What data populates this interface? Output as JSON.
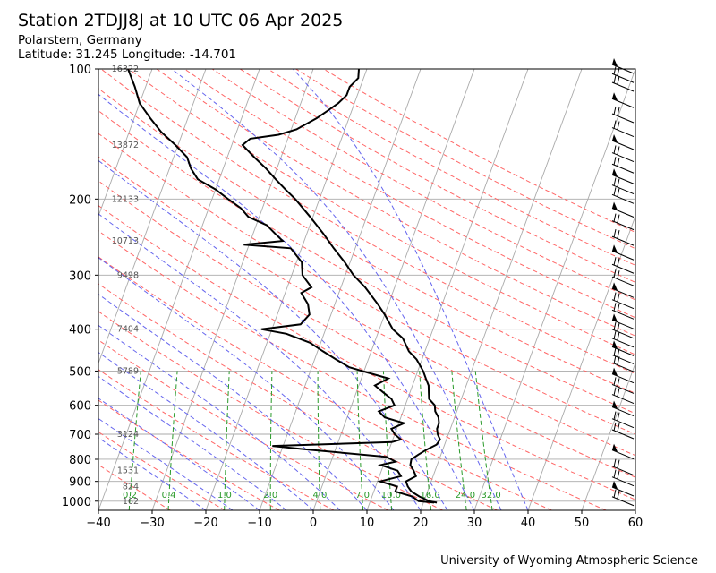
{
  "header": {
    "title": "Station 2TDJJ8J at 10 UTC 06 Apr 2025",
    "location": "Polarstern, Germany",
    "coords": "Latitude: 31.245 Longitude: -14.701"
  },
  "footer": {
    "credit": "University of Wyoming Atmospheric Science"
  },
  "colors": {
    "isotherm": "#aaaaaa",
    "isobar": "#aaaaaa",
    "dry_adiabat": "#ff6666",
    "moist_adiabat": "#6666ee",
    "mixing_ratio": "#2a9a2a",
    "temperature": "#000000",
    "dewpoint": "#000000",
    "wind_barb": "#000000"
  },
  "chart_data": {
    "type": "skew-t",
    "xlim": [
      -40,
      60
    ],
    "pressure_range": [
      1050,
      100
    ],
    "x_ticks": [
      -40,
      -30,
      -20,
      -10,
      0,
      10,
      20,
      30,
      40,
      50,
      60
    ],
    "pressure_ticks": [
      100,
      200,
      300,
      400,
      500,
      600,
      700,
      800,
      900,
      1000
    ],
    "height_labels": [
      {
        "p": 100,
        "h": "16322"
      },
      {
        "p": 150,
        "h": "13872"
      },
      {
        "p": 200,
        "h": "12133"
      },
      {
        "p": 250,
        "h": "10713"
      },
      {
        "p": 300,
        "h": "9498"
      },
      {
        "p": 400,
        "h": "7404"
      },
      {
        "p": 500,
        "h": "5789"
      },
      {
        "p": 700,
        "h": "3124"
      },
      {
        "p": 850,
        "h": "1531"
      },
      {
        "p": 925,
        "h": "824"
      },
      {
        "p": 1000,
        "h": "162"
      }
    ],
    "mixing_ratio_labels": [
      "0.2",
      "0.4",
      "1.0",
      "2.0",
      "4.0",
      "7.0",
      "10.0",
      "16.0",
      "24.0",
      "32.0"
    ],
    "mixing_ratios": [
      0.2,
      0.4,
      1.0,
      2.0,
      4.0,
      7.0,
      10.0,
      16.0,
      24.0,
      32.0
    ],
    "temperature": [
      [
        1008,
        22.5
      ],
      [
        1000,
        21.0
      ],
      [
        975,
        18.8
      ],
      [
        950,
        17.0
      ],
      [
        925,
        16.0
      ],
      [
        900,
        15.3
      ],
      [
        875,
        16.8
      ],
      [
        850,
        16.0
      ],
      [
        825,
        15.0
      ],
      [
        800,
        14.8
      ],
      [
        780,
        15.8
      ],
      [
        760,
        17.0
      ],
      [
        740,
        18.5
      ],
      [
        720,
        18.8
      ],
      [
        700,
        18.0
      ],
      [
        680,
        17.5
      ],
      [
        660,
        17.5
      ],
      [
        640,
        17.0
      ],
      [
        620,
        16.0
      ],
      [
        600,
        15.5
      ],
      [
        580,
        14.0
      ],
      [
        560,
        13.5
      ],
      [
        540,
        13.0
      ],
      [
        520,
        12.0
      ],
      [
        500,
        11.0
      ],
      [
        470,
        9.0
      ],
      [
        450,
        7.0
      ],
      [
        420,
        5.0
      ],
      [
        400,
        2.5
      ],
      [
        370,
        0.0
      ],
      [
        350,
        -2.0
      ],
      [
        320,
        -5.5
      ],
      [
        300,
        -8.5
      ],
      [
        280,
        -11.0
      ],
      [
        260,
        -14.0
      ],
      [
        240,
        -17.0
      ],
      [
        220,
        -20.5
      ],
      [
        200,
        -24.5
      ],
      [
        190,
        -27.0
      ],
      [
        180,
        -29.5
      ],
      [
        170,
        -32.0
      ],
      [
        160,
        -35.0
      ],
      [
        150,
        -38.0
      ],
      [
        145,
        -37.0
      ],
      [
        142,
        -32.0
      ],
      [
        138,
        -29.0
      ],
      [
        130,
        -26.0
      ],
      [
        125,
        -24.5
      ],
      [
        120,
        -23.0
      ],
      [
        115,
        -22.0
      ],
      [
        110,
        -22.0
      ],
      [
        105,
        -21.0
      ],
      [
        100,
        -21.5
      ]
    ],
    "dewpoint": [
      [
        1008,
        22.0
      ],
      [
        1000,
        19.0
      ],
      [
        975,
        17.5
      ],
      [
        950,
        14.0
      ],
      [
        925,
        14.0
      ],
      [
        900,
        10.5
      ],
      [
        875,
        14.0
      ],
      [
        850,
        13.0
      ],
      [
        825,
        9.5
      ],
      [
        810,
        12.0
      ],
      [
        790,
        10.0
      ],
      [
        760,
        -5.0
      ],
      [
        745,
        -12.0
      ],
      [
        730,
        10.0
      ],
      [
        720,
        11.5
      ],
      [
        700,
        10.0
      ],
      [
        680,
        9.0
      ],
      [
        660,
        11.0
      ],
      [
        640,
        7.0
      ],
      [
        620,
        5.5
      ],
      [
        600,
        8.0
      ],
      [
        580,
        7.0
      ],
      [
        560,
        5.0
      ],
      [
        540,
        3.0
      ],
      [
        520,
        5.0
      ],
      [
        505,
        1.0
      ],
      [
        490,
        -3.0
      ],
      [
        470,
        -6.0
      ],
      [
        450,
        -9.0
      ],
      [
        430,
        -12.0
      ],
      [
        410,
        -17.0
      ],
      [
        400,
        -22.0
      ],
      [
        390,
        -15.0
      ],
      [
        370,
        -14.0
      ],
      [
        350,
        -15.0
      ],
      [
        330,
        -17.0
      ],
      [
        320,
        -15.5
      ],
      [
        300,
        -18.0
      ],
      [
        280,
        -19.0
      ],
      [
        260,
        -22.0
      ],
      [
        255,
        -31.0
      ],
      [
        250,
        -24.0
      ],
      [
        240,
        -26.0
      ],
      [
        230,
        -28.0
      ],
      [
        220,
        -32.0
      ],
      [
        210,
        -34.0
      ],
      [
        200,
        -37.0
      ],
      [
        190,
        -40.0
      ],
      [
        180,
        -44.0
      ],
      [
        170,
        -46.0
      ],
      [
        160,
        -47.5
      ],
      [
        150,
        -50.5
      ],
      [
        140,
        -54.0
      ],
      [
        130,
        -57.0
      ],
      [
        120,
        -60.0
      ],
      [
        110,
        -62.0
      ],
      [
        100,
        -64.5
      ]
    ],
    "wind_barb_pressures": [
      100,
      105,
      110,
      120,
      130,
      140,
      150,
      160,
      170,
      180,
      190,
      200,
      215,
      230,
      250,
      270,
      290,
      310,
      330,
      350,
      370,
      390,
      410,
      430,
      450,
      470,
      490,
      520,
      550,
      580,
      620,
      660,
      700,
      780,
      850,
      900,
      950,
      1000
    ]
  }
}
